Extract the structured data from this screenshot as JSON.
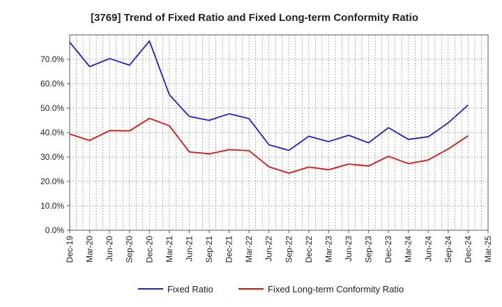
{
  "chart_data": {
    "type": "line",
    "title": "[3769]  Trend of Fixed Ratio and Fixed Long-term Conformity Ratio",
    "xlabel": "",
    "ylabel": "",
    "ylim": [
      0,
      80
    ],
    "y_ticks": [
      "0.0%",
      "10.0%",
      "20.0%",
      "30.0%",
      "40.0%",
      "50.0%",
      "60.0%",
      "70.0%"
    ],
    "y_tick_values": [
      0,
      10,
      20,
      30,
      40,
      50,
      60,
      70
    ],
    "x_ticks": [
      "Dec-19",
      "Mar-20",
      "Jun-20",
      "Sep-20",
      "Dec-20",
      "Mar-21",
      "Jun-21",
      "Sep-21",
      "Dec-21",
      "Mar-22",
      "Jun-22",
      "Sep-22",
      "Dec-22",
      "Mar-23",
      "Jun-23",
      "Sep-23",
      "Dec-23",
      "Mar-24",
      "Jun-24",
      "Sep-24",
      "Dec-24",
      "Mar-25"
    ],
    "grid": true,
    "legend_position": "bottom",
    "series": [
      {
        "name": "Fixed Ratio",
        "color": "#1f1fd0",
        "values": [
          77.0,
          67.0,
          70.3,
          67.6,
          77.5,
          55.5,
          46.6,
          45.0,
          47.7,
          45.7,
          35.0,
          32.7,
          38.5,
          36.3,
          38.9,
          35.8,
          42.0,
          37.2,
          38.3,
          44.0,
          51.3,
          null
        ]
      },
      {
        "name": "Fixed Long-term Conformity Ratio",
        "color": "#e01010",
        "values": [
          39.4,
          36.8,
          40.8,
          40.7,
          45.8,
          42.8,
          32.1,
          31.3,
          33.0,
          32.6,
          26.0,
          23.4,
          25.9,
          24.8,
          27.1,
          26.3,
          30.3,
          27.3,
          28.8,
          33.3,
          38.7,
          null
        ]
      }
    ]
  }
}
